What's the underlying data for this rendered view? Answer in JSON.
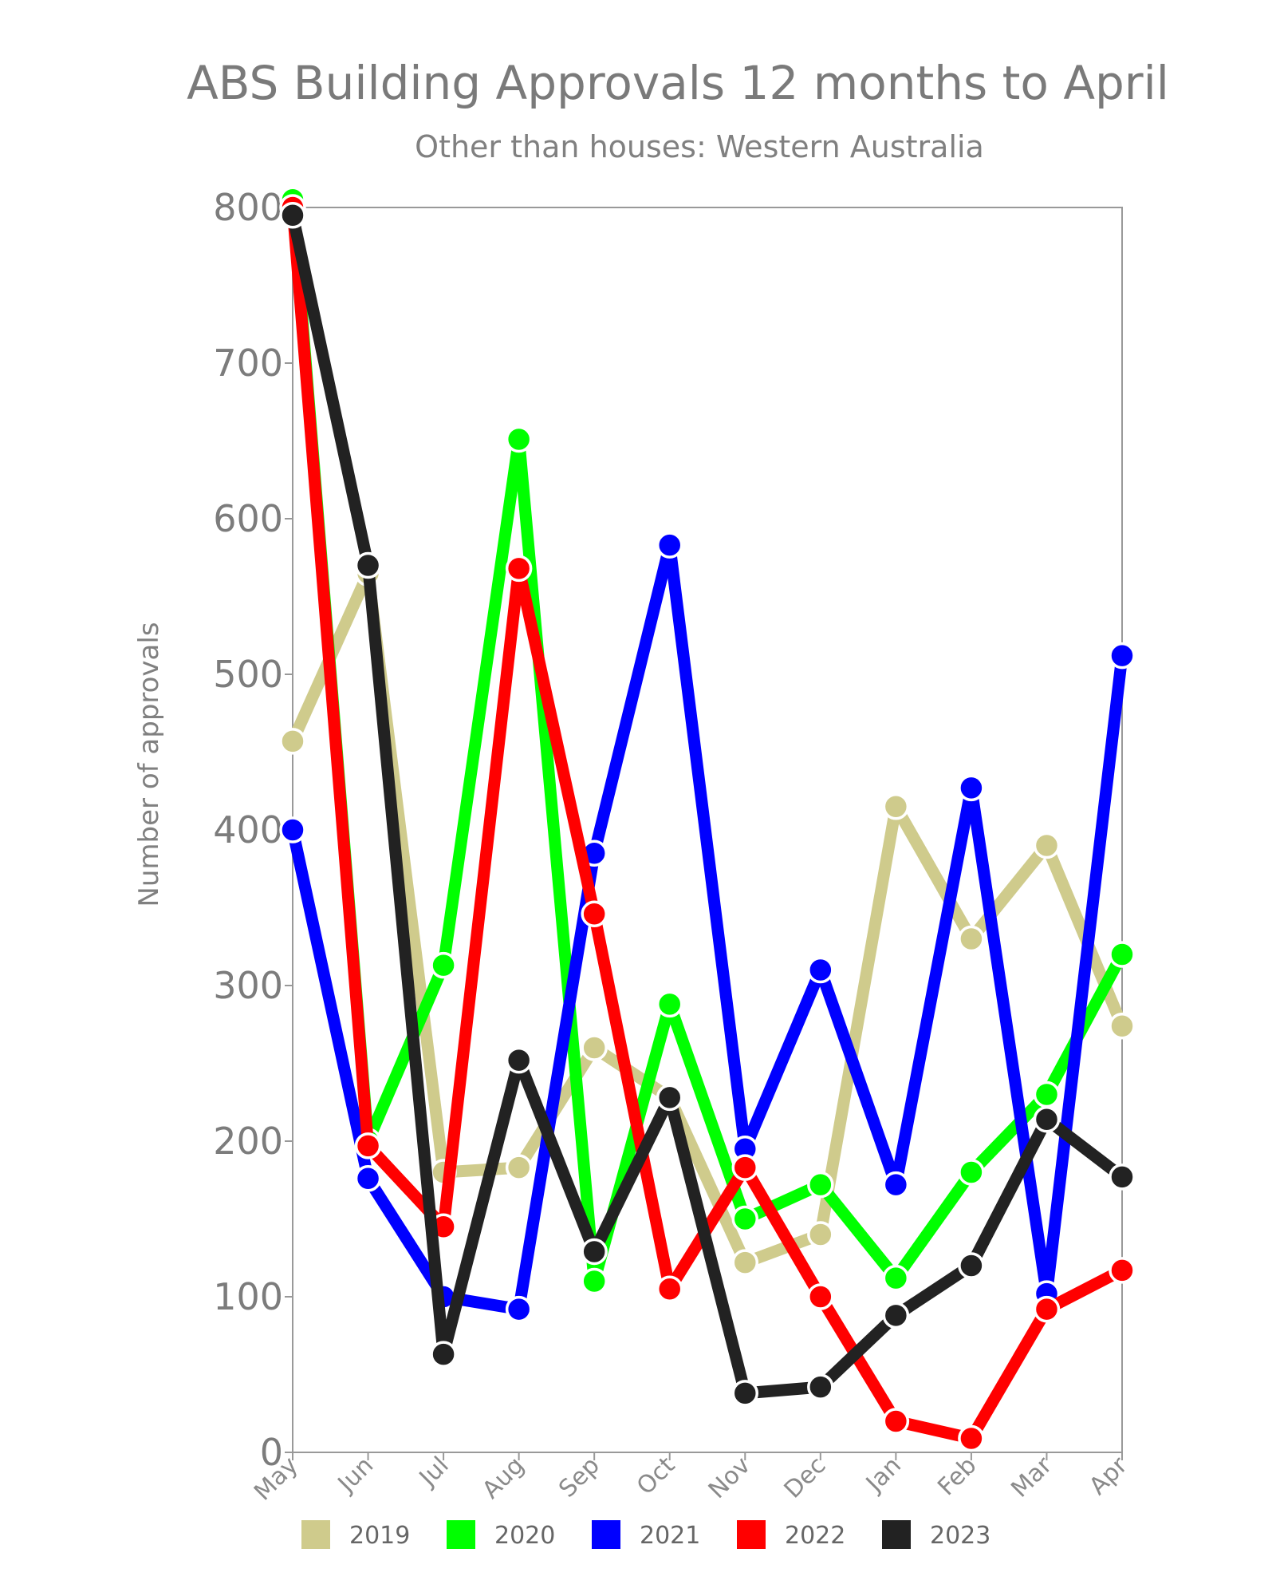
{
  "chart_data": {
    "type": "line",
    "title": "ABS Building Approvals 12 months to April",
    "subtitle": "Other than houses: Western Australia",
    "ylabel": "Number of approvals",
    "xlabel": "",
    "ylim": [
      0,
      800
    ],
    "yticks": [
      "0",
      "100",
      "200",
      "300",
      "400",
      "500",
      "600",
      "700",
      "800"
    ],
    "categories": [
      "May",
      "Jun",
      "Jul",
      "Aug",
      "Sep",
      "Oct",
      "Nov",
      "Dec",
      "Jan",
      "Feb",
      "Mar",
      "Apr"
    ],
    "legend_position": "bottom",
    "series": [
      {
        "name": "2019",
        "color": "#cfcb8c",
        "values": [
          457,
          565,
          180,
          183,
          260,
          228,
          122,
          140,
          415,
          330,
          390,
          274
        ]
      },
      {
        "name": "2020",
        "color": "#00ff00",
        "values": [
          805,
          200,
          313,
          651,
          110,
          288,
          150,
          172,
          112,
          180,
          230,
          320
        ]
      },
      {
        "name": "2021",
        "color": "#0000ff",
        "values": [
          400,
          176,
          100,
          92,
          385,
          583,
          195,
          310,
          172,
          427,
          102,
          512
        ]
      },
      {
        "name": "2022",
        "color": "#ff0000",
        "values": [
          800,
          197,
          145,
          568,
          346,
          105,
          183,
          100,
          20,
          9,
          92,
          117
        ]
      },
      {
        "name": "2023",
        "color": "#222222",
        "values": [
          795,
          570,
          63,
          252,
          129,
          228,
          38,
          42,
          88,
          120,
          214,
          177
        ]
      }
    ]
  }
}
